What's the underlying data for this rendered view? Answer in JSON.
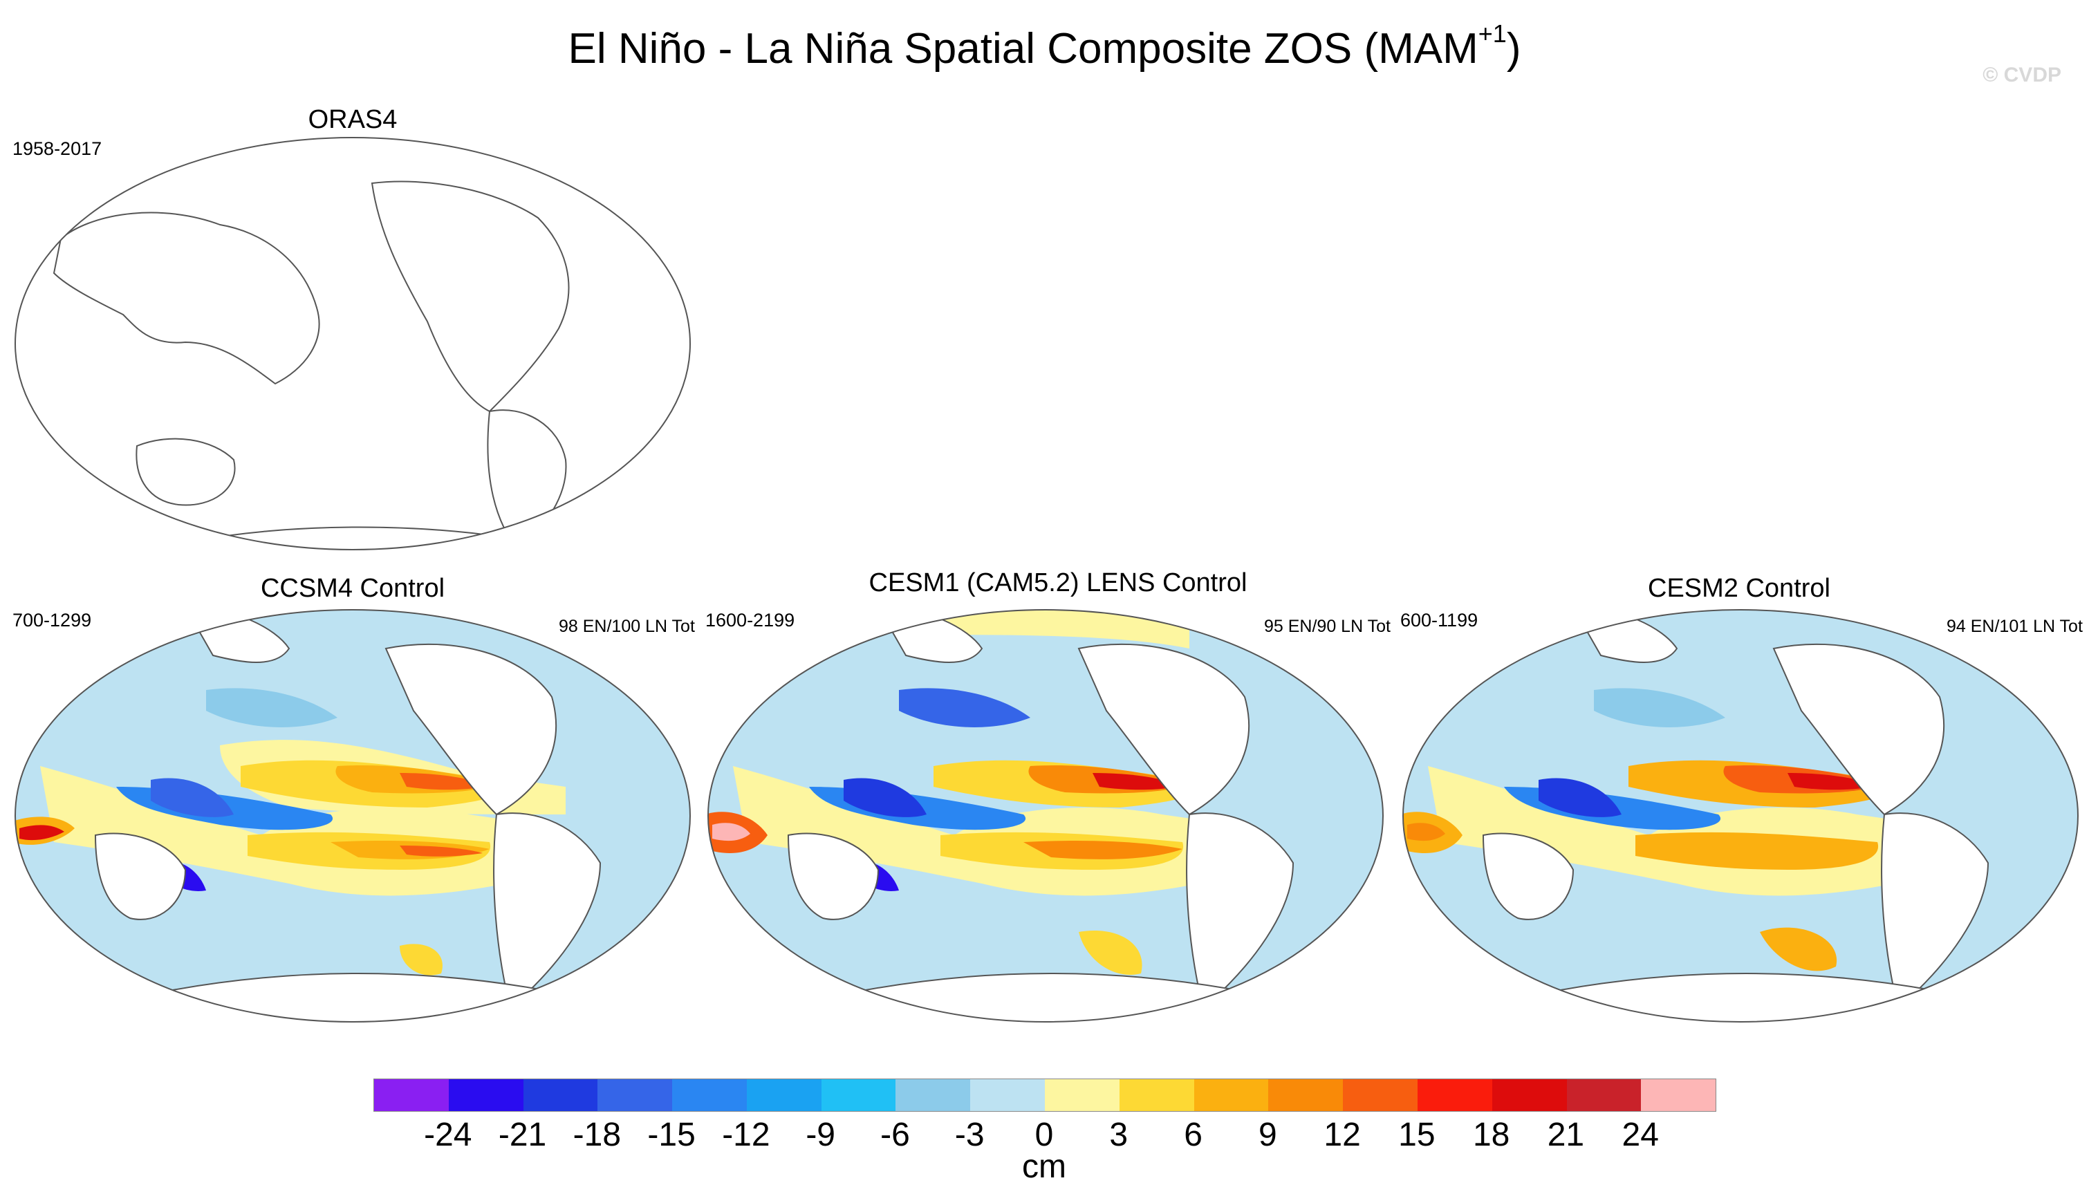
{
  "title_main": "El Niño - La Niña Spatial Composite ZOS (MAM",
  "title_sup": "+1",
  "title_close": ")",
  "watermark": "© CVDP",
  "panels": [
    {
      "title": "ORAS4",
      "period": "1958-2017",
      "counts": "",
      "filled": false
    },
    {
      "title": "CCSM4 Control",
      "period": "700-1299",
      "counts": "98 EN/100 LN Tot",
      "filled": true
    },
    {
      "title": "CESM1 (CAM5.2) LENS Control",
      "period": "1600-2199",
      "counts": "95 EN/90 LN Tot",
      "filled": true
    },
    {
      "title": "CESM2 Control",
      "period": "600-1199",
      "counts": "94 EN/101 LN Tot",
      "filled": true
    }
  ],
  "colorbar": {
    "unit": "cm",
    "labels": [
      "-24",
      "-21",
      "-18",
      "-15",
      "-12",
      "-9",
      "-6",
      "-3",
      "0",
      "3",
      "6",
      "9",
      "12",
      "15",
      "18",
      "21",
      "24"
    ],
    "colors": [
      "#8a1ff2",
      "#2a0cf0",
      "#1f3ae0",
      "#3565e8",
      "#2a86f2",
      "#1aa2f2",
      "#20c0f5",
      "#8ccbea",
      "#bde2f2",
      "#fdf6a0",
      "#fdd934",
      "#fbb010",
      "#f98a08",
      "#f75e10",
      "#fa1c0c",
      "#dd0c0c",
      "#c9222a",
      "#fdb6b6"
    ]
  }
}
